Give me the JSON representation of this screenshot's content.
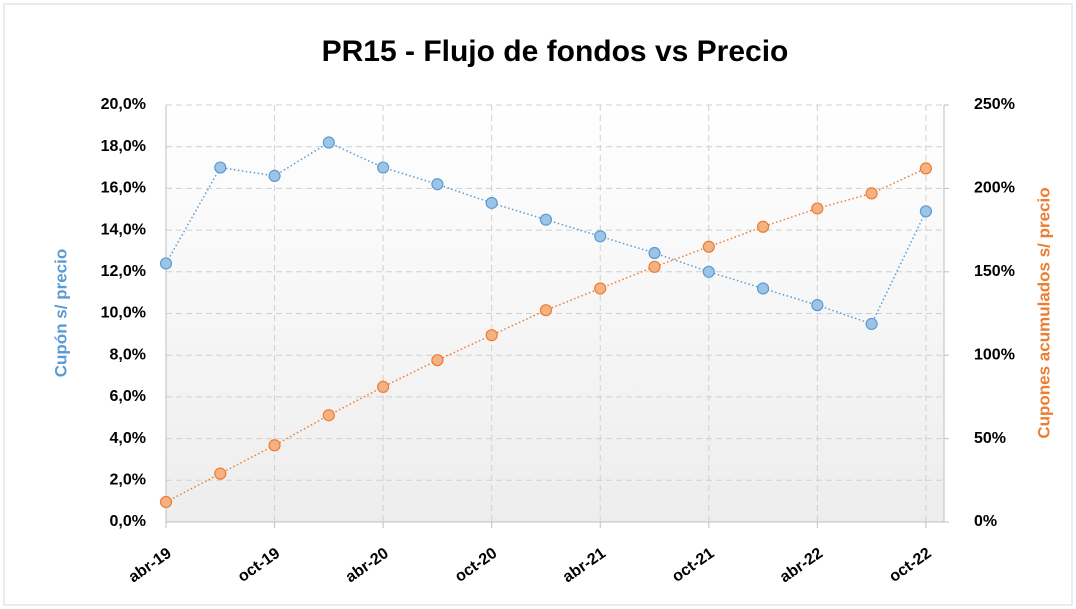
{
  "chart_data": {
    "type": "line",
    "title": "PR15 - Flujo de fondos vs Precio",
    "y_label": "Cupón s/ precio",
    "y2_label": "Cupones acumulados s/ precio",
    "x": [
      "2019-04",
      "2019-07",
      "2019-10",
      "2020-01",
      "2020-04",
      "2020-07",
      "2020-10",
      "2021-01",
      "2021-04",
      "2021-07",
      "2021-10",
      "2022-01",
      "2022-04",
      "2022-07",
      "2022-10"
    ],
    "series": [
      {
        "color": "#5b9bd5",
        "values": [
          12.4,
          17.0,
          16.6,
          18.2,
          17.0,
          16.2,
          15.3,
          14.5,
          13.7,
          12.9,
          12.0,
          11.2,
          10.4,
          9.5,
          14.9
        ]
      },
      {
        "color": "#ed7d31",
        "axis": "y2",
        "values": [
          12,
          29,
          46,
          64,
          81,
          97,
          112,
          127,
          140,
          153,
          165,
          177,
          188,
          197,
          212
        ]
      }
    ],
    "xlim": [
      "2019-04",
      "2022-11"
    ],
    "xticks": [
      {
        "value": "2019-04",
        "label": "abr-19"
      },
      {
        "value": "2019-10",
        "label": "oct-19"
      },
      {
        "value": "2020-04",
        "label": "abr-20"
      },
      {
        "value": "2020-10",
        "label": "oct-20"
      },
      {
        "value": "2021-04",
        "label": "abr-21"
      },
      {
        "value": "2021-10",
        "label": "oct-21"
      },
      {
        "value": "2022-04",
        "label": "abr-22"
      },
      {
        "value": "2022-10",
        "label": "oct-22"
      }
    ],
    "ylim": [
      0,
      20
    ],
    "yticks": [
      {
        "value": 0,
        "label": "0,0%"
      },
      {
        "value": 2,
        "label": "2,0%"
      },
      {
        "value": 4,
        "label": "4,0%"
      },
      {
        "value": 6,
        "label": "6,0%"
      },
      {
        "value": 8,
        "label": "8,0%"
      },
      {
        "value": 10,
        "label": "10,0%"
      },
      {
        "value": 12,
        "label": "12,0%"
      },
      {
        "value": 14,
        "label": "14,0%"
      },
      {
        "value": 16,
        "label": "16,0%"
      },
      {
        "value": 18,
        "label": "18,0%"
      },
      {
        "value": 20,
        "label": "20,0%"
      }
    ],
    "y2lim": [
      0,
      250
    ],
    "y2ticks": [
      {
        "value": 0,
        "label": "0%"
      },
      {
        "value": 50,
        "label": "50%"
      },
      {
        "value": 100,
        "label": "100%"
      },
      {
        "value": 150,
        "label": "150%"
      },
      {
        "value": 200,
        "label": "200%"
      },
      {
        "value": 250,
        "label": "250%"
      }
    ],
    "grid": true
  }
}
